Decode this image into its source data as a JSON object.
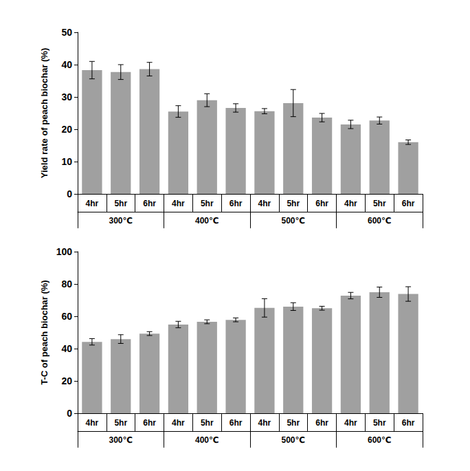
{
  "chart_data": [
    {
      "type": "bar",
      "y_label": "Yield rate of peach biochar (%)",
      "categories": [
        "4hr",
        "5hr",
        "6hr",
        "4hr",
        "5hr",
        "6hr",
        "4hr",
        "5hr",
        "6hr",
        "4hr",
        "5hr",
        "6hr"
      ],
      "groups": [
        "300℃",
        "400℃",
        "500℃",
        "600℃"
      ],
      "values": [
        38.3,
        37.7,
        38.6,
        25.5,
        29.0,
        26.6,
        25.6,
        28.1,
        23.6,
        21.5,
        22.7,
        16.0
      ],
      "errors": [
        2.7,
        2.3,
        2.1,
        1.8,
        2.0,
        1.3,
        0.8,
        4.2,
        1.3,
        1.3,
        1.1,
        0.7
      ],
      "color": "#a0a0a0",
      "ylim": [
        0,
        50
      ],
      "yticks": [
        0,
        10,
        20,
        30,
        40,
        50
      ],
      "grid": false
    },
    {
      "type": "bar",
      "y_label": "T-C of peach biochar (%)",
      "categories": [
        "4hr",
        "5hr",
        "6hr",
        "4hr",
        "5hr",
        "6hr",
        "4hr",
        "5hr",
        "6hr",
        "4hr",
        "5hr",
        "6hr"
      ],
      "groups": [
        "300℃",
        "400℃",
        "500℃",
        "600℃"
      ],
      "values": [
        44.2,
        45.9,
        49.3,
        54.9,
        56.6,
        57.8,
        65.2,
        66.0,
        65.0,
        72.8,
        74.9,
        73.8
      ],
      "errors": [
        2.0,
        2.7,
        1.2,
        2.0,
        1.2,
        1.2,
        5.7,
        2.4,
        1.2,
        2.0,
        3.2,
        4.5
      ],
      "color": "#a0a0a0",
      "ylim": [
        0,
        100
      ],
      "yticks": [
        0,
        20,
        40,
        60,
        80,
        100
      ],
      "grid": false
    }
  ]
}
